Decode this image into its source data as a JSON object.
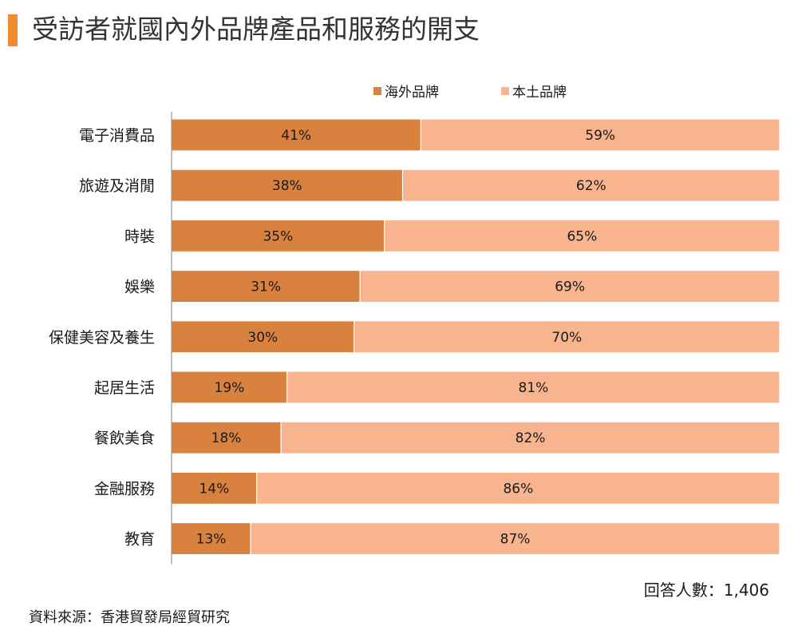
{
  "header": {
    "title": "受訪者就國內外品牌產品和服務的開支"
  },
  "colors": {
    "accent": "#f08a2c",
    "overseas": "#d9823f",
    "local": "#f8b48f",
    "axis": "#7f7f7f"
  },
  "chart_data": {
    "type": "bar",
    "orientation": "horizontal",
    "stacked": true,
    "percent": true,
    "categories": [
      "電子消費品",
      "旅遊及消閒",
      "時裝",
      "娛樂",
      "保健美容及養生",
      "起居生活",
      "餐飲美食",
      "金融服務",
      "教育"
    ],
    "series": [
      {
        "name": "海外品牌",
        "color": "#d9823f",
        "values": [
          41,
          38,
          35,
          31,
          30,
          19,
          18,
          14,
          13
        ],
        "labels": [
          "41%",
          "38%",
          "35%",
          "31%",
          "30%",
          "19%",
          "18%",
          "14%",
          "13%"
        ]
      },
      {
        "name": "本土品牌",
        "color": "#f8b48f",
        "values": [
          59,
          62,
          65,
          69,
          70,
          81,
          82,
          86,
          87
        ],
        "labels": [
          "59%",
          "62%",
          "65%",
          "69%",
          "70%",
          "81%",
          "82%",
          "86%",
          "87%"
        ]
      }
    ],
    "xlim": [
      0,
      100
    ],
    "grid": false,
    "legend_position": "top"
  },
  "footer": {
    "respondents": "回答人數：1,406",
    "source": "資料來源：香港貿發局經貿研究"
  }
}
